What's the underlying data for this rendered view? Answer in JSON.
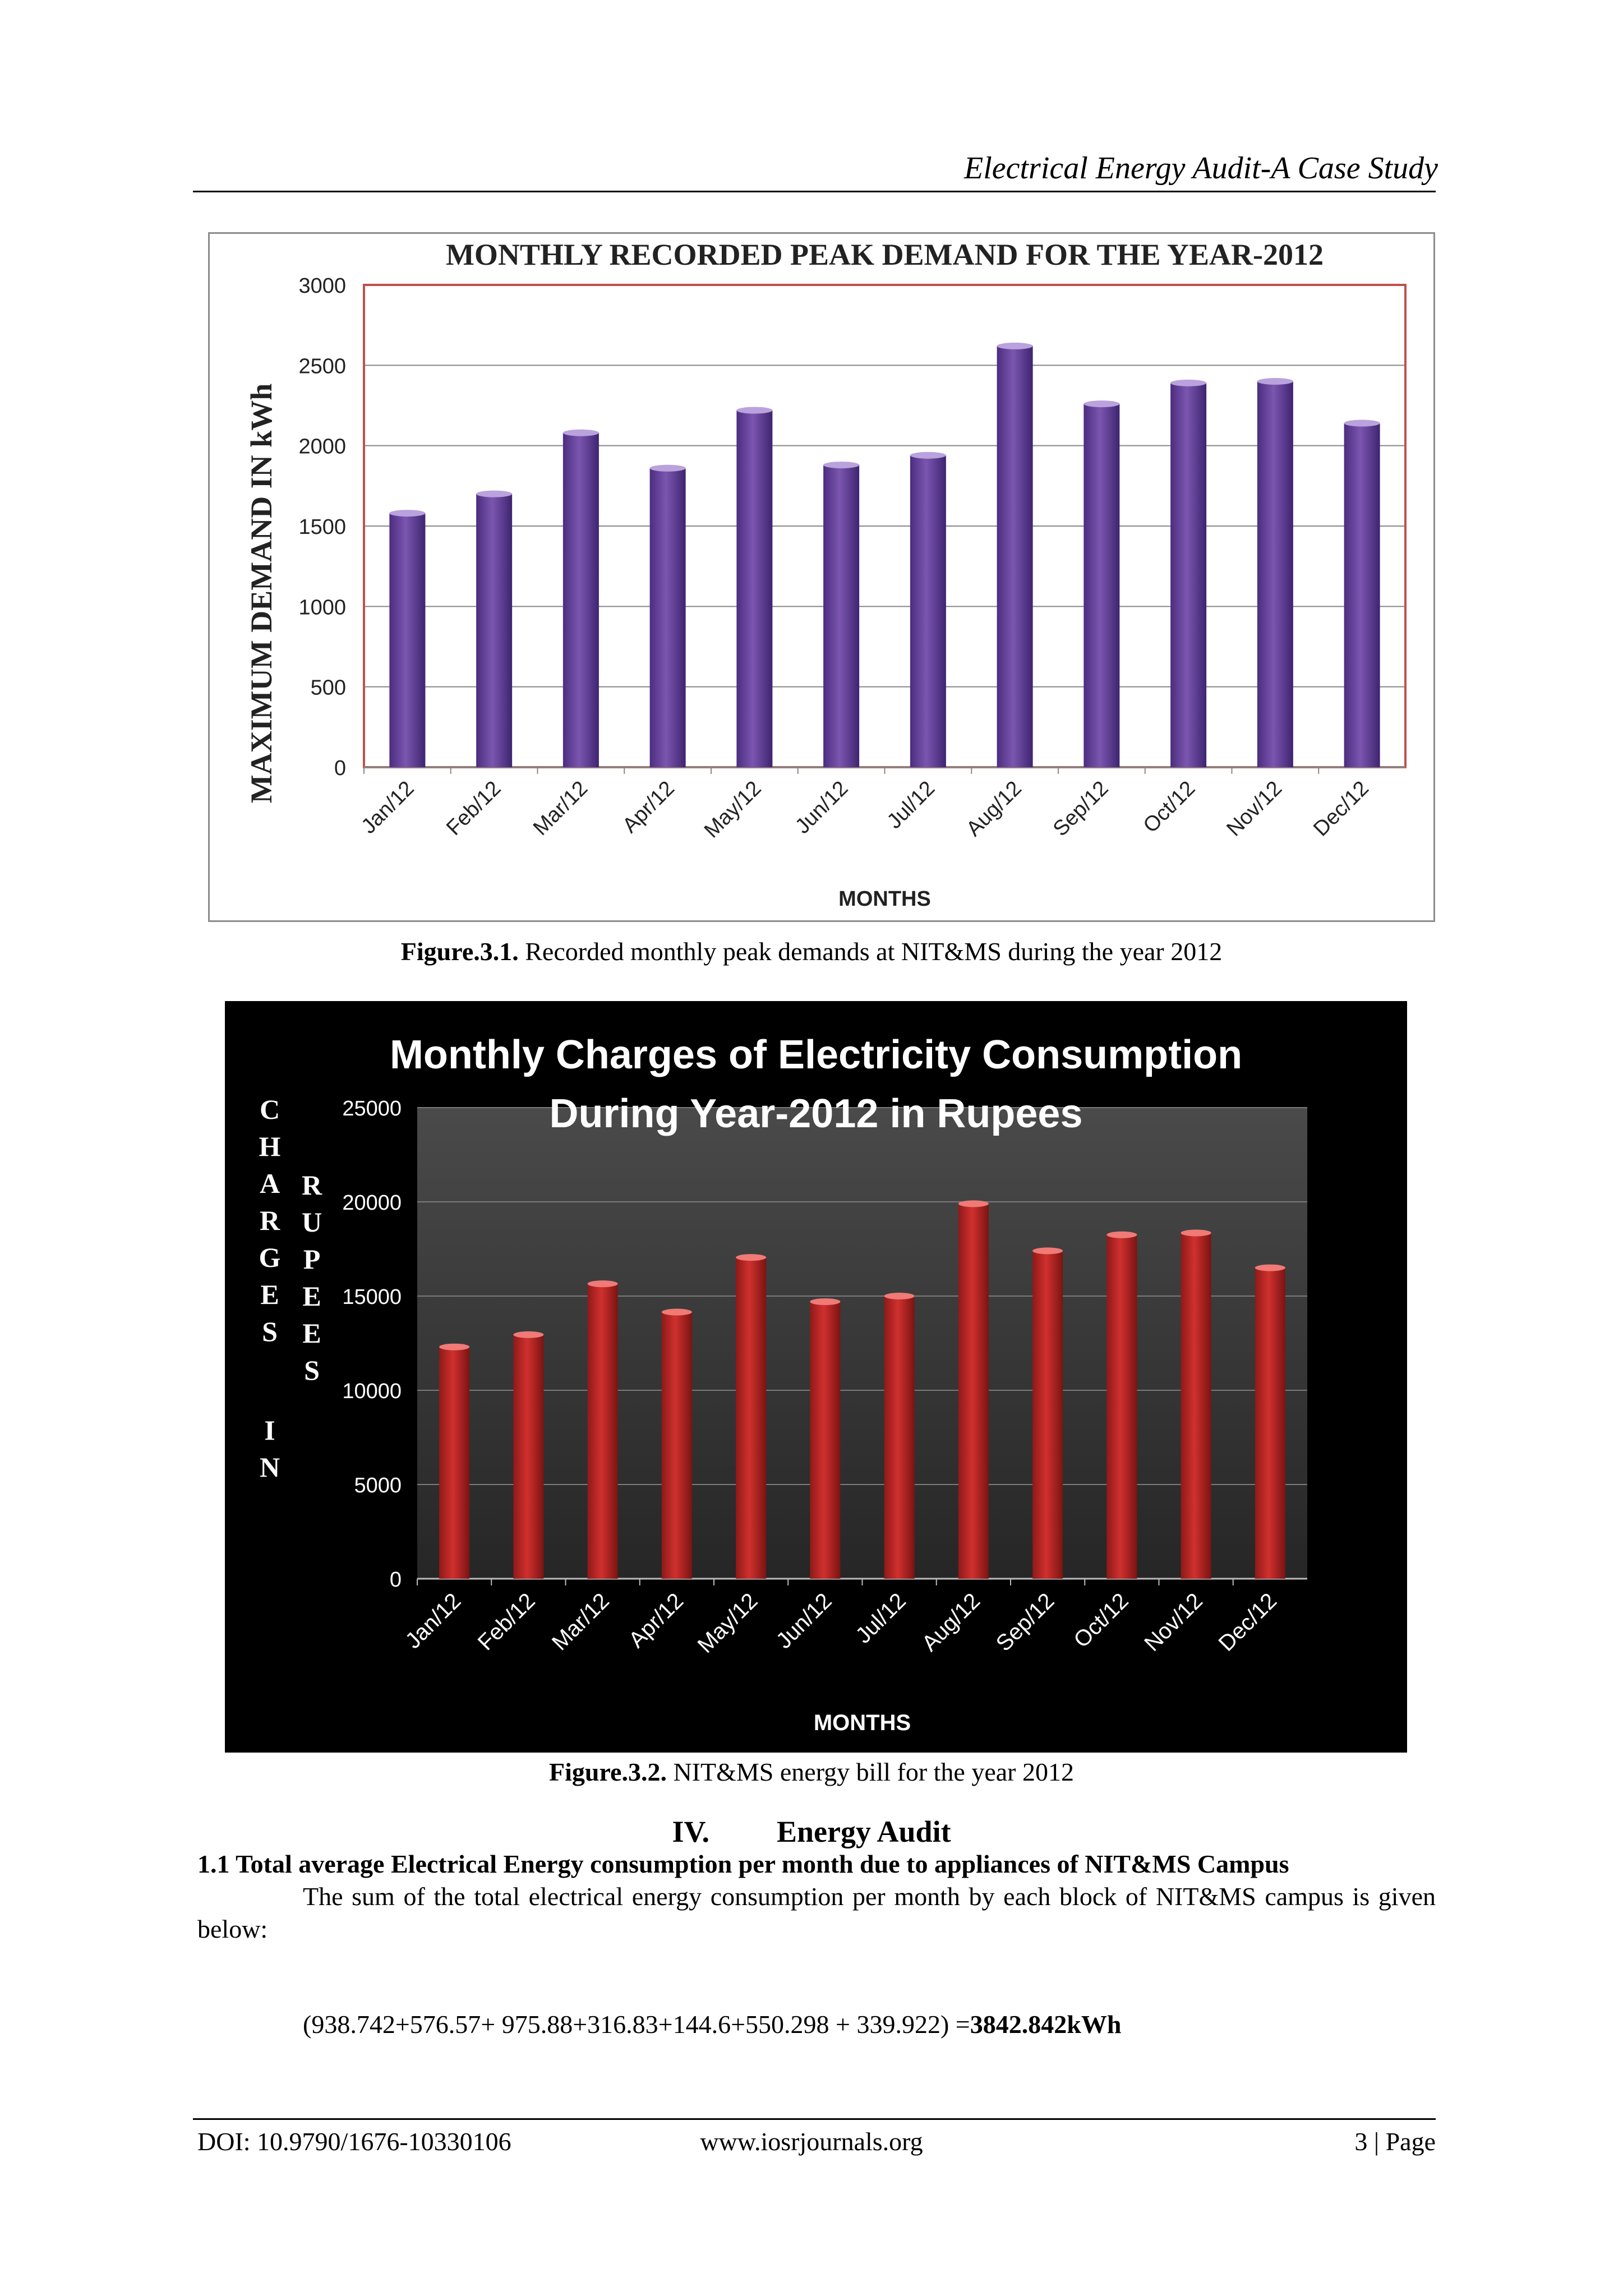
{
  "header": {
    "running_title": "Electrical Energy Audit-A Case Study"
  },
  "figure1": {
    "caption_label": "Figure.3.1.",
    "caption_text": " Recorded monthly peak demands at NIT&MS during the year 2012"
  },
  "figure2": {
    "caption_label": "Figure.3.2.",
    "caption_text": " NIT&MS energy bill for the year 2012"
  },
  "section": {
    "number": "IV.",
    "title": "Energy Audit"
  },
  "subsection": {
    "title": "1.1  Total average Electrical Energy consumption per month due to appliances of NIT&MS Campus"
  },
  "body": {
    "paragraph": "The sum of the total electrical energy consumption per month by each block of NIT&MS campus is given below:",
    "formula_expr": "(938.742+576.57+ 975.88+316.83+144.6+550.298 + 339.922) =",
    "formula_result": "3842.842kWh"
  },
  "footer": {
    "doi": "DOI: 10.9790/1676-10330106",
    "site": "www.iosrjournals.org",
    "page": "3 | Page"
  },
  "colors": {
    "chart1_bar": "#7b56b0",
    "chart2_bar": "#d0302e",
    "chart1_border": "#c0504d"
  },
  "chart_data": [
    {
      "type": "bar",
      "title": "MONTHLY RECORDED PEAK DEMAND FOR THE YEAR-2012",
      "xlabel": "MONTHS",
      "ylabel": "MAXIMUM DEMAND IN kWh",
      "ylim": [
        0,
        3000
      ],
      "yticks": [
        0,
        500,
        1000,
        1500,
        2000,
        2500,
        3000
      ],
      "grid": true,
      "categories": [
        "Jan/12",
        "Feb/12",
        "Mar/12",
        "Apr/12",
        "May/12",
        "Jun/12",
        "Jul/12",
        "Aug/12",
        "Sep/12",
        "Oct/12",
        "Nov/12",
        "Dec/12"
      ],
      "values": [
        1580,
        1700,
        2080,
        1860,
        2220,
        1880,
        1940,
        2620,
        2260,
        2390,
        2400,
        2140
      ]
    },
    {
      "type": "bar",
      "title": "Monthly Charges of Electricity Consumption During Year-2012 in Rupees",
      "title_lines": [
        "Monthly Charges of Electricity Consumption",
        "During Year-2012 in Rupees"
      ],
      "xlabel": "MONTHS",
      "ylabel": "CHARGES IN RUPEES",
      "ylabel_columns": [
        "CHARGES IN",
        "RUPEES"
      ],
      "ylim": [
        0,
        25000
      ],
      "yticks": [
        0,
        5000,
        10000,
        15000,
        20000,
        25000
      ],
      "grid": true,
      "categories": [
        "Jan/12",
        "Feb/12",
        "Mar/12",
        "Apr/12",
        "May/12",
        "Jun/12",
        "Jul/12",
        "Aug/12",
        "Sep/12",
        "Oct/12",
        "Nov/12",
        "Dec/12"
      ],
      "values": [
        12300,
        12950,
        15650,
        14150,
        17050,
        14700,
        15000,
        19900,
        17400,
        18250,
        18350,
        16500
      ]
    }
  ]
}
